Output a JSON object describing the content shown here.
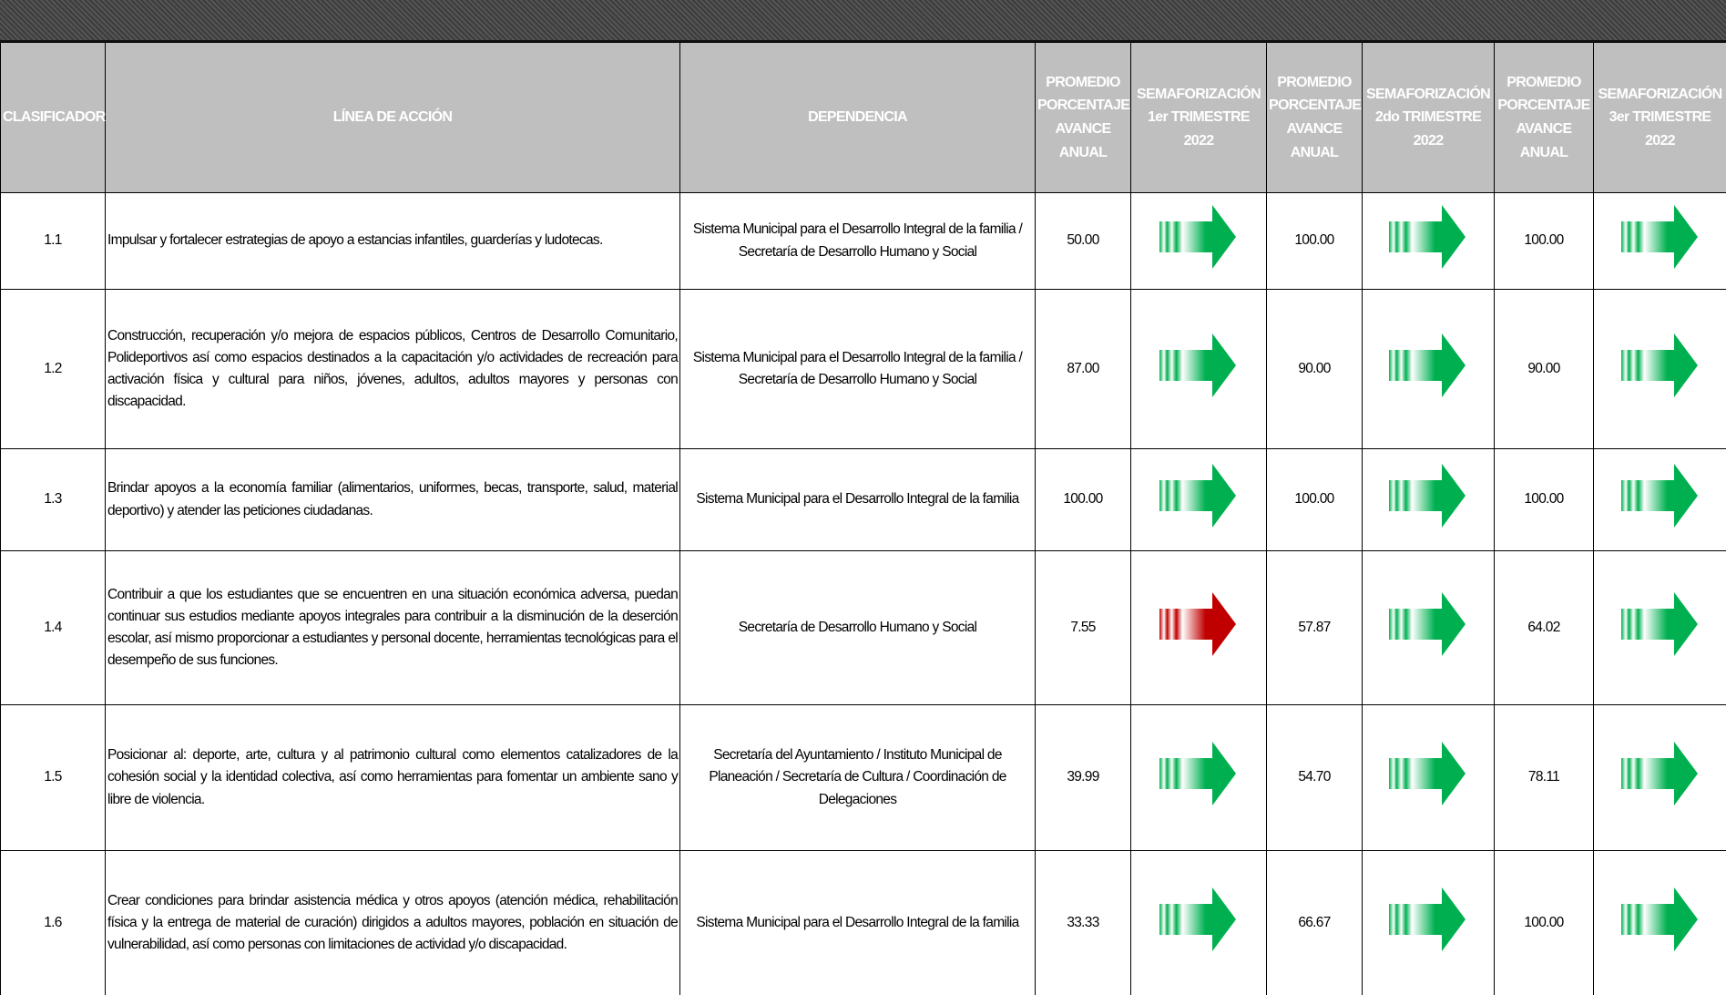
{
  "table": {
    "headers": [
      "CLASIFICADOR",
      "LÍNEA DE ACCIÓN",
      "DEPENDENCIA",
      "PROMEDIO PORCENTAJE AVANCE ANUAL",
      "SEMAFORIZACIÓN 1er TRIMESTRE 2022",
      "PROMEDIO PORCENTAJE AVANCE ANUAL",
      "SEMAFORIZACIÓN 2do TRIMESTRE 2022",
      "PROMEDIO PORCENTAJE AVANCE ANUAL",
      "SEMAFORIZACIÓN 3er TRIMESTRE 2022"
    ],
    "rows": [
      [
        "1.1",
        "Impulsar y fortalecer estrategias de apoyo a estancias infantiles, guarderías y ludotecas.",
        "Sistema Municipal para el Desarrollo Integral de la familia / Secretaría de Desarrollo Humano y Social",
        "50.00",
        "#00b050",
        "100.00",
        "#00b050",
        "100.00",
        "#00b050"
      ],
      [
        "1.2",
        "Construcción, recuperación y/o mejora de espacios públicos, Centros de Desarrollo Comunitario, Polideportivos así como espacios destinados a la capacitación y/o actividades de recreación para activación física y cultural para niños, jóvenes, adultos, adultos mayores y personas con discapacidad.",
        "Sistema Municipal para el Desarrollo Integral de la familia / Secretaría de Desarrollo Humano y Social",
        "87.00",
        "#00b050",
        "90.00",
        "#00b050",
        "90.00",
        "#00b050"
      ],
      [
        "1.3",
        "Brindar apoyos a la economía familiar (alimentarios, uniformes, becas, transporte, salud, material deportivo) y atender las peticiones ciudadanas.",
        "Sistema Municipal para el Desarrollo Integral de la familia",
        "100.00",
        "#00b050",
        "100.00",
        "#00b050",
        "100.00",
        "#00b050"
      ],
      [
        "1.4",
        "Contribuir a que los estudiantes que se encuentren en una situación económica adversa, puedan continuar sus estudios mediante apoyos integrales para contribuir a la disminución de la deserción escolar, así mismo proporcionar a estudiantes y personal docente, herramientas tecnológicas para el desempeño de sus funciones.",
        "Secretaría de Desarrollo Humano y Social",
        "7.55",
        "#c00000",
        "57.87",
        "#00b050",
        "64.02",
        "#00b050"
      ],
      [
        "1.5",
        "Posicionar al: deporte, arte, cultura y al patrimonio cultural como elementos catalizadores de la cohesión social y la identidad colectiva, así como herramientas para fomentar un ambiente sano y libre de violencia.",
        "Secretaría del Ayuntamiento / Instituto Municipal de Planeación / Secretaría de Cultura / Coordinación de Delegaciones",
        "39.99",
        "#00b050",
        "54.70",
        "#00b050",
        "78.11",
        "#00b050"
      ],
      [
        "1.6",
        "Crear condiciones para brindar asistencia médica y otros apoyos (atención médica, rehabilitación física y la entrega de material de curación) dirigidos a adultos mayores, población en situación de vulnerabilidad, así como personas con limitaciones de actividad y/o discapacidad.",
        "Sistema Municipal para el Desarrollo Integral de la familia",
        "33.33",
        "#00b050",
        "66.67",
        "#00b050",
        "100.00",
        "#00b050"
      ]
    ]
  }
}
